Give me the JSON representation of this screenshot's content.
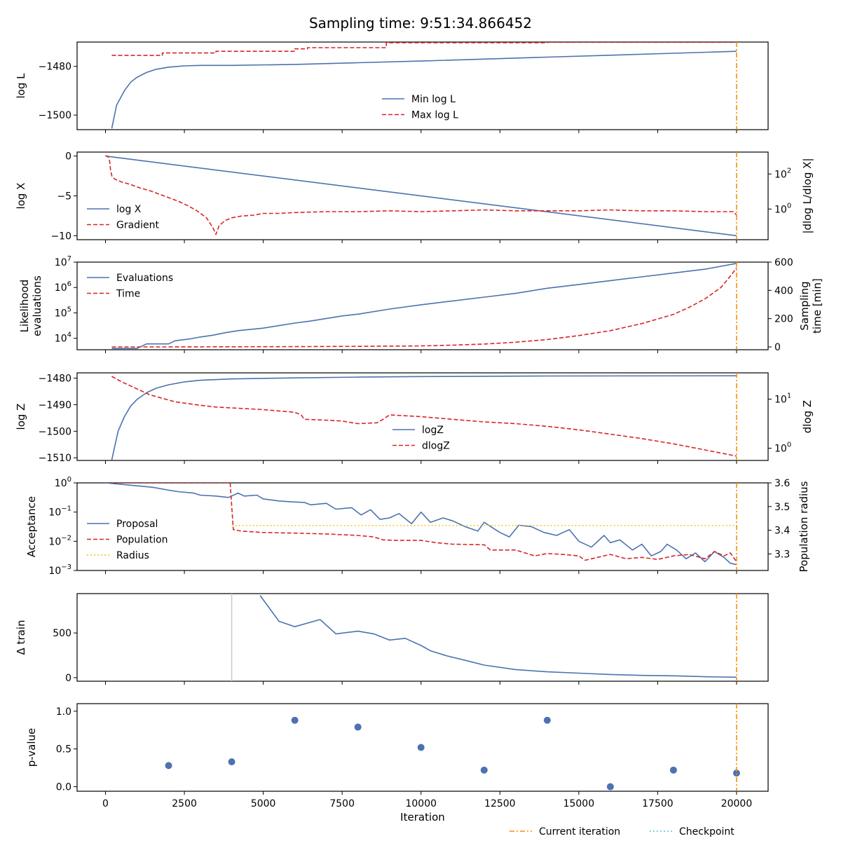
{
  "title": "Sampling time: 9:51:34.866452",
  "colors": {
    "blue": "#4c72b0",
    "red": "#d62728",
    "orange": "#ff8c00",
    "gold": "#f2c200",
    "gray": "#c8c8c8",
    "checkpoint": "#5bbfcf"
  },
  "figure_legend": {
    "current": "Current iteration",
    "checkpoint": "Checkpoint"
  },
  "chart_data": [
    {
      "type": "line",
      "ylabel": "log L",
      "ylim": [
        -1506,
        -1470
      ],
      "yticks": [
        -1480,
        -1500
      ],
      "ytick_labels": [
        "−1480",
        "−1500"
      ],
      "legend": [
        "Min log L",
        "Max log L"
      ],
      "legend_placement": "lower-center",
      "series": [
        {
          "name": "Min log L",
          "x": [
            200,
            350,
            600,
            800,
            1000,
            1300,
            1600,
            2000,
            2500,
            3000,
            4000,
            6000,
            8000,
            10000,
            12000,
            14000,
            16000,
            18000,
            20000
          ],
          "y": [
            -1505.5,
            -1496,
            -1490,
            -1486.5,
            -1484.5,
            -1482.5,
            -1481.2,
            -1480.3,
            -1479.8,
            -1479.6,
            -1479.6,
            -1479.2,
            -1478.5,
            -1477.8,
            -1477.0,
            -1476.2,
            -1475.4,
            -1474.6,
            -1473.8
          ]
        },
        {
          "name": "Max log L",
          "x": [
            200,
            1800,
            1800,
            3500,
            3500,
            6000,
            6000,
            6400,
            6400,
            8900,
            8900,
            14000,
            14000,
            20000
          ],
          "y": [
            -1475.5,
            -1475.5,
            -1474.5,
            -1474.5,
            -1473.8,
            -1473.8,
            -1472.8,
            -1472.8,
            -1472.3,
            -1472.3,
            -1470.3,
            -1470.3,
            -1470.1,
            -1470.1
          ]
        }
      ]
    },
    {
      "type": "line",
      "ylabel": "log X",
      "ylabel_right": "|dlog L/dlog X|",
      "ylim": [
        -10.5,
        0.5
      ],
      "yticks": [
        0,
        -5,
        -10
      ],
      "ytick_labels": [
        "0",
        "−5",
        "−10"
      ],
      "yticks_right_labels": [
        "10",
        "10"
      ],
      "yticks_right_exp": [
        "2",
        "0"
      ],
      "yticks_right_frac": [
        0.25,
        0.65
      ],
      "legend": [
        "log X",
        "Gradient"
      ],
      "legend_placement": "lower-left",
      "series": [
        {
          "name": "log X",
          "x": [
            0,
            20000
          ],
          "y": [
            0,
            -10
          ]
        },
        {
          "name": "Gradient",
          "x": [
            0,
            80,
            130,
            160,
            200,
            300,
            500,
            800,
            1100,
            1400,
            1700,
            2000,
            2300,
            2600,
            2900,
            3200,
            3400,
            3500,
            3600,
            3800,
            4000,
            4300,
            4700,
            5000,
            5500,
            6000,
            7000,
            8000,
            9000,
            10000,
            11000,
            12000,
            13000,
            14000,
            15000,
            16000,
            17000,
            18000,
            19000,
            19900,
            20000
          ],
          "frac": [
            0.04,
            0.05,
            0.1,
            0.2,
            0.27,
            0.31,
            0.34,
            0.37,
            0.41,
            0.44,
            0.48,
            0.52,
            0.56,
            0.61,
            0.67,
            0.75,
            0.86,
            0.94,
            0.84,
            0.78,
            0.75,
            0.73,
            0.72,
            0.7,
            0.7,
            0.69,
            0.68,
            0.68,
            0.67,
            0.68,
            0.67,
            0.66,
            0.67,
            0.67,
            0.67,
            0.66,
            0.67,
            0.67,
            0.68,
            0.68,
            0.72
          ]
        }
      ]
    },
    {
      "type": "line",
      "ylabel": "Likelihood evaluations",
      "ylabel_lines": [
        "Likelihood",
        "evaluations"
      ],
      "ylabel_right": "Sampling time [min]",
      "ylabel_right_lines": [
        "Sampling",
        "time [min]"
      ],
      "ylim_log10": [
        3.55,
        7.0
      ],
      "yticks_log10": [
        4,
        5,
        6,
        7
      ],
      "ytick_base": "10",
      "ytick_exps": [
        "4",
        "5",
        "6",
        "7"
      ],
      "ylim_right": [
        -20,
        600
      ],
      "yticks_right": [
        0,
        200,
        400,
        600
      ],
      "legend": [
        "Evaluations",
        "Time"
      ],
      "legend_placement": "upper-left",
      "series": [
        {
          "name": "Evaluations",
          "x": [
            200,
            1000,
            1300,
            2000,
            2200,
            2700,
            3000,
            3400,
            3800,
            4200,
            5000,
            5500,
            6000,
            6500,
            7000,
            7500,
            8000,
            9000,
            10000,
            11000,
            12000,
            13000,
            14000,
            15000,
            16000,
            17000,
            18000,
            19000,
            20000
          ],
          "log10y": [
            3.6,
            3.6,
            3.78,
            3.78,
            3.9,
            3.98,
            4.05,
            4.12,
            4.22,
            4.3,
            4.4,
            4.5,
            4.6,
            4.68,
            4.78,
            4.88,
            4.95,
            5.15,
            5.32,
            5.47,
            5.62,
            5.77,
            5.97,
            6.12,
            6.27,
            6.42,
            6.57,
            6.72,
            6.95
          ]
        },
        {
          "name": "Time",
          "x": [
            200,
            2000,
            4000,
            6000,
            8000,
            10000,
            11000,
            12000,
            13000,
            14000,
            15000,
            16000,
            17000,
            18000,
            18500,
            19000,
            19500,
            19800,
            20000
          ],
          "y": [
            0,
            0,
            1,
            2,
            4,
            7,
            12,
            20,
            33,
            52,
            80,
            115,
            165,
            230,
            280,
            340,
            420,
            500,
            560
          ]
        }
      ]
    },
    {
      "type": "line",
      "ylabel": "log Z",
      "ylabel_right": "dlog Z",
      "ylim": [
        -1511,
        -1478
      ],
      "yticks": [
        -1480,
        -1490,
        -1500,
        -1510
      ],
      "ytick_labels": [
        "−1480",
        "−1490",
        "−1500",
        "−1510"
      ],
      "yticks_right_labels": [
        "10",
        "10"
      ],
      "yticks_right_exp": [
        "1",
        "0"
      ],
      "yticks_right_frac": [
        0.3,
        0.86
      ],
      "legend": [
        "logZ",
        "dlogZ"
      ],
      "legend_placement": "lower-center",
      "series": [
        {
          "name": "logZ",
          "x": [
            200,
            400,
            600,
            800,
            1000,
            1300,
            1600,
            2000,
            2500,
            3000,
            4000,
            6000,
            8000,
            10000,
            14000,
            20000
          ],
          "y": [
            -1510.8,
            -1500,
            -1494.5,
            -1490.5,
            -1488,
            -1485.5,
            -1483.8,
            -1482.5,
            -1481.4,
            -1480.8,
            -1480.3,
            -1479.9,
            -1479.6,
            -1479.4,
            -1479.2,
            -1479.1
          ]
        },
        {
          "name": "dlogZ",
          "x": [
            200,
            500,
            800,
            1100,
            1400,
            1800,
            2200,
            2600,
            3000,
            3500,
            4000,
            5000,
            6000,
            6200,
            6300,
            7000,
            7500,
            8000,
            8600,
            8800,
            9000,
            10000,
            11000,
            12000,
            13000,
            14000,
            15000,
            16000,
            17000,
            18000,
            19000,
            20000
          ],
          "frac": [
            0.04,
            0.1,
            0.15,
            0.2,
            0.25,
            0.29,
            0.33,
            0.35,
            0.37,
            0.39,
            0.4,
            0.42,
            0.45,
            0.48,
            0.53,
            0.54,
            0.55,
            0.58,
            0.57,
            0.53,
            0.48,
            0.5,
            0.53,
            0.56,
            0.58,
            0.61,
            0.65,
            0.7,
            0.75,
            0.81,
            0.88,
            0.95
          ]
        }
      ]
    },
    {
      "type": "line",
      "ylabel": "Acceptance",
      "ylabel_right": "Population radius",
      "ylim_log10": [
        -3,
        0
      ],
      "yticks_log10": [
        0,
        -1,
        -2,
        -3
      ],
      "ytick_base": "10",
      "ytick_exps": [
        "0",
        "−1",
        "−2",
        "−3"
      ],
      "ylim_right": [
        3.23,
        3.6
      ],
      "yticks_right": [
        3.6,
        3.5,
        3.4,
        3.3
      ],
      "yticks_right_labels": [
        "3.6",
        "3.5",
        "3.4",
        "3.3"
      ],
      "legend": [
        "Proposal",
        "Population",
        "Radius"
      ],
      "legend_placement": "middle-left",
      "series": [
        {
          "name": "Proposal",
          "x": [
            0,
            1000,
            1500,
            2000,
            2300,
            2800,
            3000,
            3500,
            3900,
            4200,
            4400,
            4800,
            5000,
            5500,
            5900,
            6300,
            6500,
            7000,
            7300,
            7800,
            8100,
            8400,
            8700,
            9000,
            9300,
            9700,
            10000,
            10300,
            10700,
            11000,
            11400,
            11800,
            12000,
            12500,
            12800,
            13100,
            13500,
            13900,
            14300,
            14700,
            15000,
            15400,
            15800,
            16000,
            16300,
            16700,
            17000,
            17300,
            17600,
            17800,
            18100,
            18400,
            18700,
            19000,
            19300,
            19600,
            19800,
            20000
          ],
          "log10y": [
            0,
            -0.1,
            -0.15,
            -0.25,
            -0.3,
            -0.35,
            -0.42,
            -0.45,
            -0.5,
            -0.35,
            -0.45,
            -0.42,
            -0.55,
            -0.62,
            -0.65,
            -0.67,
            -0.75,
            -0.7,
            -0.9,
            -0.85,
            -1.1,
            -0.92,
            -1.25,
            -1.2,
            -1.05,
            -1.4,
            -1.0,
            -1.35,
            -1.2,
            -1.3,
            -1.5,
            -1.65,
            -1.35,
            -1.7,
            -1.85,
            -1.45,
            -1.5,
            -1.7,
            -1.8,
            -1.6,
            -2.0,
            -2.2,
            -1.8,
            -2.05,
            -1.95,
            -2.3,
            -2.1,
            -2.5,
            -2.35,
            -2.1,
            -2.3,
            -2.6,
            -2.4,
            -2.7,
            -2.35,
            -2.55,
            -2.75,
            -2.8
          ]
        },
        {
          "name": "Population",
          "x": [
            150,
            3950,
            4050,
            4300,
            5000,
            6000,
            7000,
            8000,
            8500,
            8800,
            9200,
            10000,
            10500,
            11000,
            12000,
            12200,
            13000,
            13600,
            14000,
            14500,
            15000,
            15200,
            16000,
            16500,
            17000,
            17500,
            18000,
            18500,
            19000,
            19300,
            19600,
            19800,
            20000
          ],
          "log10y": [
            0,
            0,
            -1.6,
            -1.65,
            -1.7,
            -1.72,
            -1.75,
            -1.8,
            -1.85,
            -1.95,
            -1.97,
            -1.97,
            -2.05,
            -2.1,
            -2.12,
            -2.3,
            -2.3,
            -2.5,
            -2.42,
            -2.45,
            -2.5,
            -2.65,
            -2.45,
            -2.6,
            -2.55,
            -2.62,
            -2.5,
            -2.45,
            -2.6,
            -2.35,
            -2.5,
            -2.4,
            -2.7
          ]
        },
        {
          "name": "Radius",
          "x": [
            4000,
            20000
          ],
          "y": [
            3.42,
            3.42
          ]
        }
      ]
    },
    {
      "type": "line",
      "ylabel": "Δ train",
      "ylim": [
        -40,
        940
      ],
      "yticks": [
        0,
        500
      ],
      "ytick_labels": [
        "0",
        "500"
      ],
      "series": [
        {
          "name": "",
          "x": [
            4900,
            5500,
            6000,
            6800,
            7300,
            8000,
            8500,
            9000,
            9500,
            10000,
            10300,
            10800,
            11500,
            12000,
            13000,
            14000,
            15000,
            16000,
            17000,
            18000,
            19000,
            20000
          ],
          "y": [
            920,
            630,
            570,
            650,
            490,
            520,
            490,
            420,
            440,
            360,
            300,
            245,
            185,
            140,
            90,
            65,
            50,
            35,
            25,
            20,
            10,
            5
          ]
        }
      ],
      "vline_x": 4000
    },
    {
      "type": "scatter",
      "ylabel": "p-value",
      "xlabel": "Iteration",
      "ylim": [
        -0.06,
        1.1
      ],
      "yticks": [
        1.0,
        0.5,
        0.0
      ],
      "ytick_labels": [
        "1.0",
        "0.5",
        "0.0"
      ],
      "xticks": [
        0,
        2500,
        5000,
        7500,
        10000,
        12500,
        15000,
        17500,
        20000
      ],
      "xtick_labels": [
        "0",
        "2500",
        "5000",
        "7500",
        "10000",
        "12500",
        "15000",
        "17500",
        "20000"
      ],
      "series": [
        {
          "name": "",
          "x": [
            2000,
            4000,
            6000,
            8000,
            10000,
            12000,
            14000,
            16000,
            18000,
            20000
          ],
          "y": [
            0.28,
            0.33,
            0.88,
            0.79,
            0.52,
            0.22,
            0.88,
            0.0,
            0.22,
            0.18
          ]
        }
      ]
    }
  ]
}
